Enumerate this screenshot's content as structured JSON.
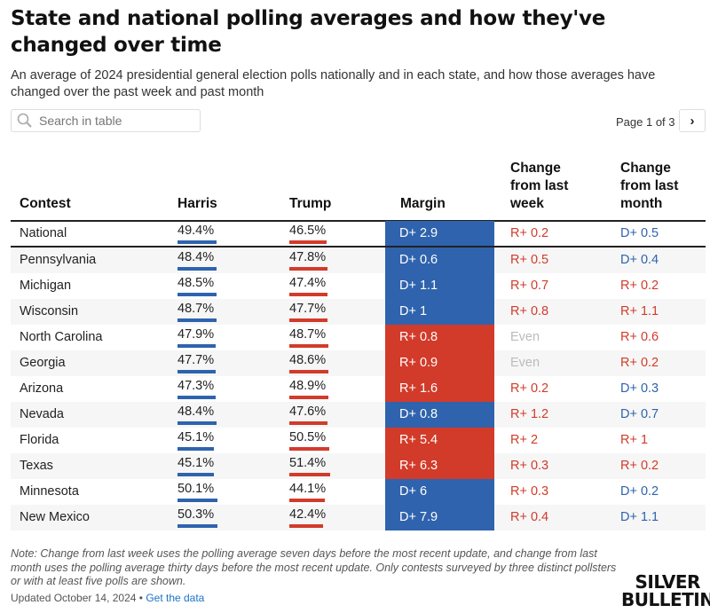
{
  "title": "State and national polling averages and how they've changed over time",
  "subtitle": "An average of 2024 presidential general election polls nationally and in each state, and how those averages have changed over the past week and past month",
  "search": {
    "placeholder": "Search in table",
    "icon": "search-icon"
  },
  "pagination": {
    "label": "Page 1 of 3",
    "next": "›"
  },
  "colors": {
    "dem": "#2f63ad",
    "rep": "#d23b2a",
    "even": "#bbbbbb"
  },
  "chart_data": {
    "type": "table",
    "columns": [
      "Contest",
      "Harris",
      "Trump",
      "Margin",
      "Change from last week",
      "Change from last month"
    ],
    "rows": [
      {
        "contest": "National",
        "harris": "49.4%",
        "trump": "46.5%",
        "h": 49.4,
        "t": 46.5,
        "margin": "D+ 2.9",
        "week": "R+ 0.2",
        "month": "D+ 0.5"
      },
      {
        "contest": "Pennsylvania",
        "harris": "48.4%",
        "trump": "47.8%",
        "h": 48.4,
        "t": 47.8,
        "margin": "D+ 0.6",
        "week": "R+ 0.5",
        "month": "D+ 0.4"
      },
      {
        "contest": "Michigan",
        "harris": "48.5%",
        "trump": "47.4%",
        "h": 48.5,
        "t": 47.4,
        "margin": "D+ 1.1",
        "week": "R+ 0.7",
        "month": "R+ 0.2"
      },
      {
        "contest": "Wisconsin",
        "harris": "48.7%",
        "trump": "47.7%",
        "h": 48.7,
        "t": 47.7,
        "margin": "D+ 1",
        "week": "R+ 0.8",
        "month": "R+ 1.1"
      },
      {
        "contest": "North Carolina",
        "harris": "47.9%",
        "trump": "48.7%",
        "h": 47.9,
        "t": 48.7,
        "margin": "R+ 0.8",
        "week": "Even",
        "month": "R+ 0.6"
      },
      {
        "contest": "Georgia",
        "harris": "47.7%",
        "trump": "48.6%",
        "h": 47.7,
        "t": 48.6,
        "margin": "R+ 0.9",
        "week": "Even",
        "month": "R+ 0.2"
      },
      {
        "contest": "Arizona",
        "harris": "47.3%",
        "trump": "48.9%",
        "h": 47.3,
        "t": 48.9,
        "margin": "R+ 1.6",
        "week": "R+ 0.2",
        "month": "D+ 0.3"
      },
      {
        "contest": "Nevada",
        "harris": "48.4%",
        "trump": "47.6%",
        "h": 48.4,
        "t": 47.6,
        "margin": "D+ 0.8",
        "week": "R+ 1.2",
        "month": "D+ 0.7"
      },
      {
        "contest": "Florida",
        "harris": "45.1%",
        "trump": "50.5%",
        "h": 45.1,
        "t": 50.5,
        "margin": "R+ 5.4",
        "week": "R+ 2",
        "month": "R+ 1"
      },
      {
        "contest": "Texas",
        "harris": "45.1%",
        "trump": "51.4%",
        "h": 45.1,
        "t": 51.4,
        "margin": "R+ 6.3",
        "week": "R+ 0.3",
        "month": "R+ 0.2"
      },
      {
        "contest": "Minnesota",
        "harris": "50.1%",
        "trump": "44.1%",
        "h": 50.1,
        "t": 44.1,
        "margin": "D+ 6",
        "week": "R+ 0.3",
        "month": "D+ 0.2"
      },
      {
        "contest": "New Mexico",
        "harris": "50.3%",
        "trump": "42.4%",
        "h": 50.3,
        "t": 42.4,
        "margin": "D+ 7.9",
        "week": "R+ 0.4",
        "month": "D+ 1.1"
      }
    ]
  },
  "note": "Note: Change from last week uses the polling average seven days before the most recent update, and change from last month uses the polling average thirty days before the most recent update. Only contests surveyed by three distinct pollsters or with at least five polls are shown.",
  "updated": "Updated October 14, 2024 •",
  "get_data": "Get the data",
  "logo": "SILVER BULLETIN"
}
